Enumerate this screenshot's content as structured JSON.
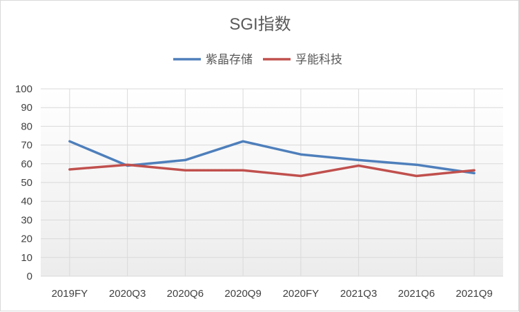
{
  "chart_data": {
    "type": "line",
    "title": "SGI指数",
    "categories": [
      "2019FY",
      "2020Q3",
      "2020Q6",
      "2020Q9",
      "2020FY",
      "2021Q3",
      "2021Q6",
      "2021Q9"
    ],
    "ylim": [
      0,
      100
    ],
    "yticks": [
      "0",
      "10",
      "20",
      "30",
      "40",
      "50",
      "60",
      "70",
      "80",
      "90",
      "100"
    ],
    "grid": true,
    "legend_position": "top",
    "series": [
      {
        "name": "紫晶存储",
        "color": "#4e7fbb",
        "values": [
          72,
          59,
          62,
          72,
          65,
          62,
          59.5,
          55
        ]
      },
      {
        "name": "孚能科技",
        "color": "#c0504d",
        "values": [
          57,
          59.5,
          56.5,
          56.5,
          53.5,
          59,
          53.5,
          56.5
        ]
      }
    ]
  }
}
